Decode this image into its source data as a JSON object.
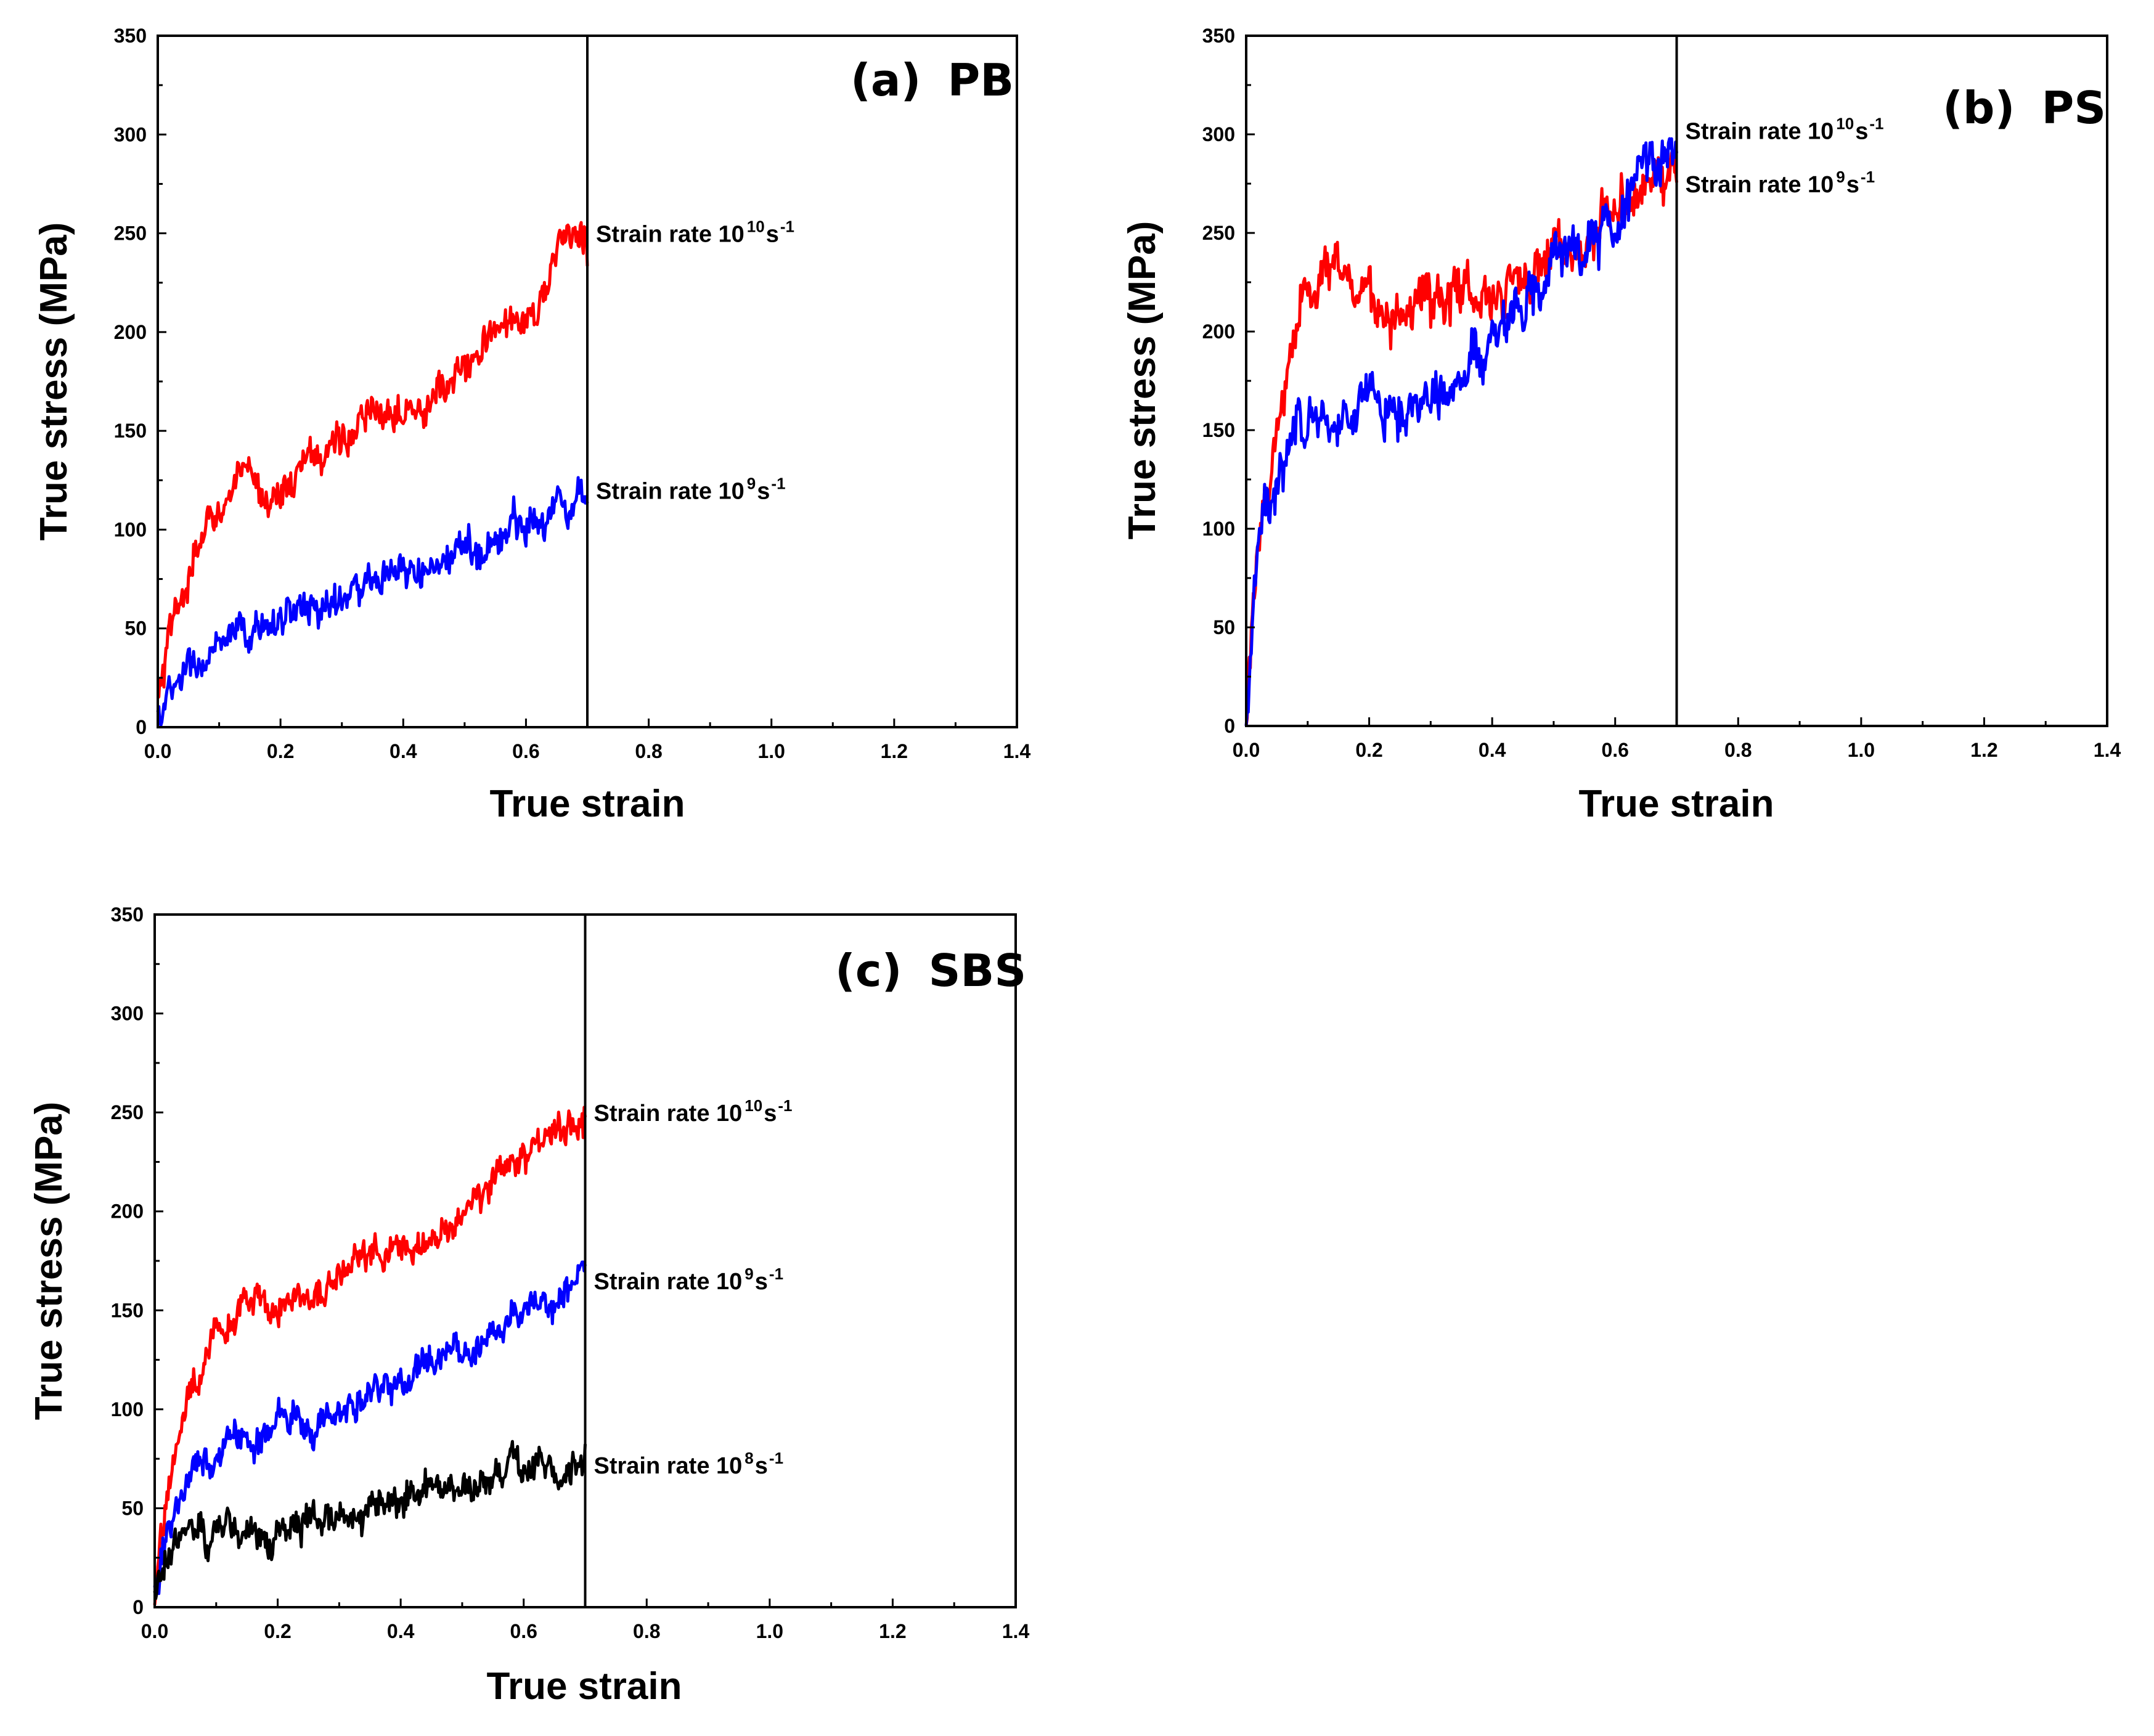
{
  "figure": {
    "panel_count": 3
  },
  "chart_data": [
    {
      "type": "line",
      "panel_label": "(a)",
      "panel_title": "PB",
      "xlabel": "True strain",
      "ylabel": "True stress (MPa)",
      "xlim": [
        0.0,
        1.4
      ],
      "ylim": [
        0,
        350
      ],
      "xticks": [
        "0.0",
        "0.2",
        "0.4",
        "0.6",
        "0.8",
        "1.0",
        "1.2",
        "1.4"
      ],
      "yticks": [
        "0",
        "50",
        "100",
        "150",
        "200",
        "250",
        "300",
        "350"
      ],
      "vline_x": 0.7,
      "noise": 10,
      "series": [
        {
          "name": "Strain rate 10^10 s^-1",
          "color": "#ff0000",
          "label_text": "Strain rate 10",
          "label_exp": "10",
          "label_unit": "s",
          "label_unit_exp": "-1",
          "label_value_y": 250,
          "x": [
            0.0,
            0.02,
            0.05,
            0.08,
            0.1,
            0.13,
            0.16,
            0.2,
            0.25,
            0.3,
            0.35,
            0.4,
            0.45,
            0.5,
            0.55,
            0.6,
            0.63,
            0.66,
            0.68,
            0.7
          ],
          "y": [
            10,
            45,
            75,
            100,
            112,
            125,
            120,
            118,
            135,
            148,
            155,
            168,
            165,
            180,
            200,
            210,
            220,
            245,
            252,
            240
          ]
        },
        {
          "name": "Strain rate 10^9 s^-1",
          "color": "#0000ff",
          "label_text": "Strain rate 10",
          "label_exp": "9",
          "label_unit": "s",
          "label_unit_exp": "-1",
          "label_value_y": 120,
          "x": [
            0.0,
            0.02,
            0.05,
            0.08,
            0.1,
            0.15,
            0.2,
            0.25,
            0.3,
            0.35,
            0.4,
            0.45,
            0.5,
            0.55,
            0.6,
            0.65,
            0.7
          ],
          "y": [
            5,
            15,
            28,
            35,
            38,
            45,
            58,
            60,
            65,
            72,
            75,
            80,
            88,
            95,
            105,
            112,
            120
          ]
        }
      ]
    },
    {
      "type": "line",
      "panel_label": "(b)",
      "panel_title": "PS",
      "xlabel": "True strain",
      "ylabel": "True stress (MPa)",
      "xlim": [
        0.0,
        1.4
      ],
      "ylim": [
        0,
        350
      ],
      "xticks": [
        "0.0",
        "0.2",
        "0.4",
        "0.6",
        "0.8",
        "1.0",
        "1.2",
        "1.4"
      ],
      "yticks": [
        "0",
        "50",
        "100",
        "150",
        "200",
        "250",
        "300",
        "350"
      ],
      "vline_x": 0.7,
      "noise": 14,
      "series": [
        {
          "name": "Strain rate 10^10 s^-1",
          "color": "#ff0000",
          "label_text": "Strain rate 10",
          "label_exp": "10",
          "label_unit": "s",
          "label_unit_exp": "-1",
          "label_value_y": 302,
          "x": [
            0.0,
            0.01,
            0.03,
            0.05,
            0.07,
            0.1,
            0.13,
            0.16,
            0.2,
            0.25,
            0.3,
            0.35,
            0.4,
            0.45,
            0.5,
            0.55,
            0.6,
            0.65,
            0.7
          ],
          "y": [
            0,
            60,
            110,
            150,
            190,
            225,
            235,
            225,
            218,
            205,
            215,
            225,
            222,
            230,
            240,
            250,
            262,
            272,
            280
          ]
        },
        {
          "name": "Strain rate 10^9 s^-1",
          "color": "#0000ff",
          "label_text": "Strain rate 10",
          "label_exp": "9",
          "label_unit": "s",
          "label_unit_exp": "-1",
          "label_value_y": 275,
          "x": [
            0.0,
            0.01,
            0.03,
            0.05,
            0.08,
            0.1,
            0.13,
            0.16,
            0.2,
            0.25,
            0.3,
            0.35,
            0.4,
            0.45,
            0.5,
            0.55,
            0.6,
            0.65,
            0.7
          ],
          "y": [
            0,
            60,
            105,
            130,
            150,
            158,
            155,
            160,
            165,
            160,
            170,
            185,
            190,
            215,
            230,
            240,
            255,
            280,
            300
          ]
        }
      ]
    },
    {
      "type": "line",
      "panel_label": "(c)",
      "panel_title": "SBS",
      "xlabel": "True strain",
      "ylabel": "True stress (MPa)",
      "xlim": [
        0.0,
        1.4
      ],
      "ylim": [
        0,
        350
      ],
      "xticks": [
        "0.0",
        "0.2",
        "0.4",
        "0.6",
        "0.8",
        "1.0",
        "1.2",
        "1.4"
      ],
      "yticks": [
        "0",
        "50",
        "100",
        "150",
        "200",
        "250",
        "300",
        "350"
      ],
      "vline_x": 0.7,
      "noise": 9,
      "series": [
        {
          "name": "Strain rate 10^10 s^-1",
          "color": "#ff0000",
          "label_text": "Strain rate 10",
          "label_exp": "10",
          "label_unit": "s",
          "label_unit_exp": "-1",
          "label_value_y": 250,
          "x": [
            0.0,
            0.02,
            0.05,
            0.08,
            0.1,
            0.13,
            0.16,
            0.2,
            0.25,
            0.3,
            0.35,
            0.4,
            0.45,
            0.5,
            0.55,
            0.6,
            0.65,
            0.7
          ],
          "y": [
            5,
            60,
            100,
            125,
            138,
            145,
            152,
            155,
            155,
            168,
            180,
            175,
            188,
            195,
            215,
            228,
            240,
            250
          ]
        },
        {
          "name": "Strain rate 10^9 s^-1",
          "color": "#0000ff",
          "label_text": "Strain rate 10",
          "label_exp": "9",
          "label_unit": "s",
          "label_unit_exp": "-1",
          "label_value_y": 165,
          "x": [
            0.0,
            0.02,
            0.05,
            0.08,
            0.1,
            0.15,
            0.2,
            0.25,
            0.3,
            0.35,
            0.4,
            0.45,
            0.5,
            0.55,
            0.6,
            0.65,
            0.7
          ],
          "y": [
            5,
            40,
            65,
            72,
            75,
            85,
            95,
            92,
            98,
            110,
            118,
            125,
            130,
            140,
            148,
            158,
            170
          ]
        },
        {
          "name": "Strain rate 10^8 s^-1",
          "color": "#000000",
          "label_text": "Strain rate 10",
          "label_exp": "8",
          "label_unit": "s",
          "label_unit_exp": "-1",
          "label_value_y": 72,
          "x": [
            0.0,
            0.02,
            0.05,
            0.08,
            0.1,
            0.15,
            0.2,
            0.25,
            0.3,
            0.35,
            0.4,
            0.45,
            0.5,
            0.55,
            0.6,
            0.65,
            0.7
          ],
          "y": [
            5,
            28,
            33,
            35,
            36,
            38,
            40,
            45,
            48,
            52,
            55,
            58,
            62,
            65,
            70,
            72,
            75
          ]
        }
      ]
    }
  ]
}
